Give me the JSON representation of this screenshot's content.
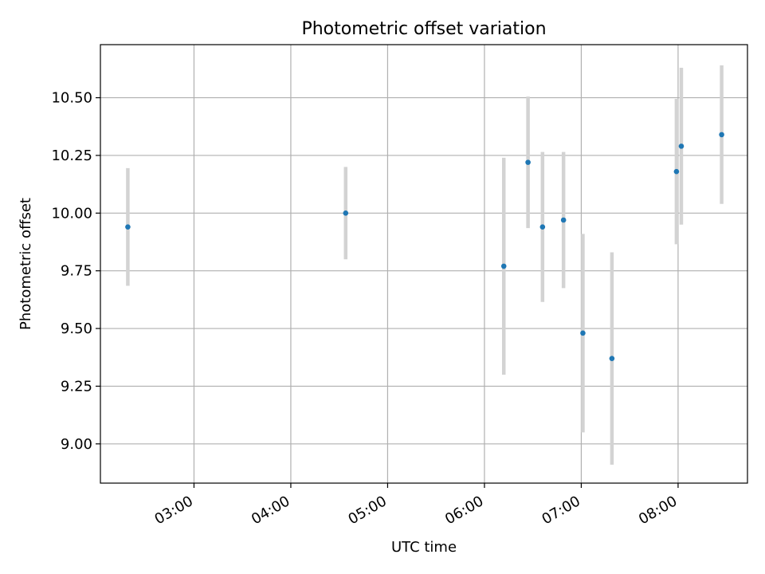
{
  "chart_data": {
    "type": "scatter",
    "title": "Photometric offset variation",
    "xlabel": "UTC time",
    "ylabel": "Photometric offset",
    "x_ticks": [
      "03:00",
      "04:00",
      "05:00",
      "06:00",
      "07:00",
      "08:00"
    ],
    "y_ticks": [
      "9.00",
      "9.25",
      "9.50",
      "9.75",
      "10.00",
      "10.25",
      "10.50"
    ],
    "xlim": [
      "02:02",
      "08:43"
    ],
    "ylim": [
      8.83,
      10.73
    ],
    "grid": true,
    "colors": {
      "points": "#1f77b4",
      "errorbars": "#d3d3d3",
      "grid": "#b0b0b0"
    },
    "points": [
      {
        "x": "02:19",
        "y": 9.94,
        "err": 0.255
      },
      {
        "x": "04:34",
        "y": 10.0,
        "err": 0.2
      },
      {
        "x": "06:12",
        "y": 9.77,
        "err": 0.47
      },
      {
        "x": "06:27",
        "y": 10.22,
        "err": 0.285
      },
      {
        "x": "06:36",
        "y": 9.94,
        "err": 0.325
      },
      {
        "x": "06:49",
        "y": 9.97,
        "err": 0.295
      },
      {
        "x": "07:01",
        "y": 9.48,
        "err": 0.43
      },
      {
        "x": "07:19",
        "y": 9.37,
        "err": 0.46
      },
      {
        "x": "07:59",
        "y": 10.18,
        "err": 0.315
      },
      {
        "x": "08:02",
        "y": 10.29,
        "err": 0.34
      },
      {
        "x": "08:27",
        "y": 10.34,
        "err": 0.3
      }
    ]
  }
}
